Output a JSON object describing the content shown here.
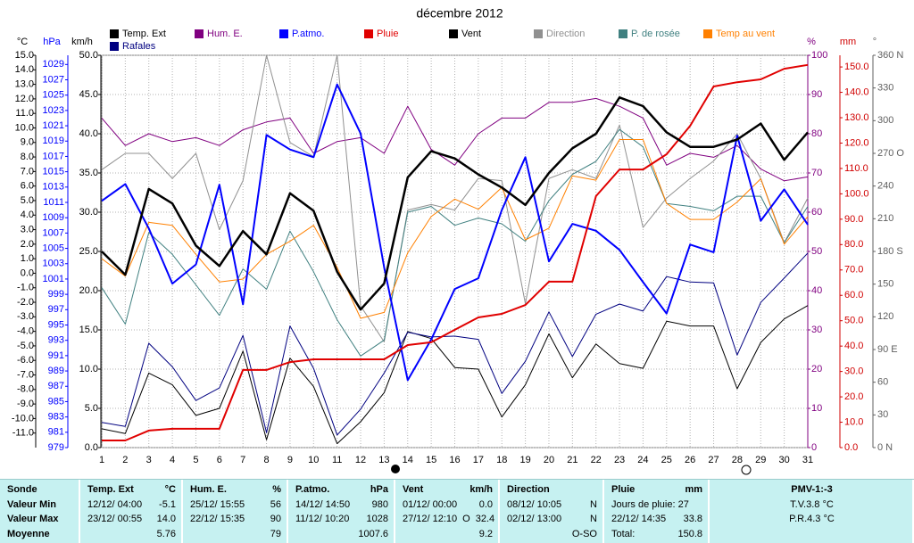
{
  "chart_data": {
    "type": "line",
    "title": "décembre 2012",
    "x": [
      1,
      2,
      3,
      4,
      5,
      6,
      7,
      8,
      9,
      10,
      11,
      12,
      13,
      14,
      15,
      16,
      17,
      18,
      19,
      20,
      21,
      22,
      23,
      24,
      25,
      26,
      27,
      28,
      29,
      30,
      31
    ],
    "xlim": [
      1,
      31
    ],
    "xticks": [
      1,
      2,
      3,
      4,
      5,
      6,
      7,
      8,
      9,
      10,
      11,
      12,
      13,
      14,
      15,
      16,
      17,
      18,
      19,
      20,
      21,
      22,
      23,
      24,
      25,
      26,
      27,
      28,
      29,
      30,
      31
    ],
    "grid": true,
    "axes": [
      {
        "label": "°C",
        "color": "#000000",
        "lim": [
          -12,
          15
        ],
        "ticks": [
          {
            "value": 15,
            "label": "15.0"
          },
          {
            "value": 14,
            "label": "14.0"
          },
          {
            "value": 13,
            "label": "13.0"
          },
          {
            "value": 12,
            "label": "12.0"
          },
          {
            "value": 11,
            "label": "11.0"
          },
          {
            "value": 10,
            "label": "10.0"
          },
          {
            "value": 9,
            "label": "9.0"
          },
          {
            "value": 8,
            "label": "8.0"
          },
          {
            "value": 7,
            "label": "7.0"
          },
          {
            "value": 6,
            "label": "6.0"
          },
          {
            "value": 5,
            "label": "5.0"
          },
          {
            "value": 4,
            "label": "4.0"
          },
          {
            "value": 3,
            "label": "3.0"
          },
          {
            "value": 2,
            "label": "2.0"
          },
          {
            "value": 1,
            "label": "1.0"
          },
          {
            "value": 0,
            "label": "0.0"
          },
          {
            "value": -1,
            "label": "-1.0"
          },
          {
            "value": -2,
            "label": "-2.0"
          },
          {
            "value": -3,
            "label": "-3.0"
          },
          {
            "value": -4,
            "label": "-4.0"
          },
          {
            "value": -5,
            "label": "-5.0"
          },
          {
            "value": -6,
            "label": "-6.0"
          },
          {
            "value": -7,
            "label": "-7.0"
          },
          {
            "value": -8,
            "label": "-8.0"
          },
          {
            "value": -9,
            "label": "-9.0"
          },
          {
            "value": -10,
            "label": "-10.0"
          },
          {
            "value": -11,
            "label": "-11.0"
          }
        ]
      },
      {
        "label": "hPa",
        "color": "#0000ff",
        "lim": [
          979,
          1030.2
        ],
        "ticks": [
          1029,
          1027,
          1025,
          1023,
          1021,
          1019,
          1017,
          1015,
          1013,
          1011,
          1009,
          1007,
          1005,
          1003,
          1001,
          999,
          997,
          995,
          993,
          991,
          989,
          987,
          985,
          983,
          981,
          979
        ]
      },
      {
        "label": "km/h",
        "color": "#000000",
        "lim": [
          0,
          50
        ],
        "grid": true,
        "ticks": [
          {
            "value": 50,
            "label": "50.0"
          },
          {
            "value": 45,
            "label": "45.0"
          },
          {
            "value": 40,
            "label": "40.0"
          },
          {
            "value": 35,
            "label": "35.0"
          },
          {
            "value": 30,
            "label": "30.0"
          },
          {
            "value": 25,
            "label": "25.0"
          },
          {
            "value": 20,
            "label": "20.0"
          },
          {
            "value": 15,
            "label": "15.0"
          },
          {
            "value": 10,
            "label": "10.0"
          },
          {
            "value": 5,
            "label": "5.0"
          },
          {
            "value": 0,
            "label": "0.0"
          }
        ]
      },
      {
        "label": "%",
        "color": "#800080",
        "lim": [
          0,
          100
        ],
        "ticks": [
          100,
          90,
          80,
          70,
          60,
          50,
          40,
          30,
          20,
          10,
          0
        ]
      },
      {
        "label": "mm",
        "color": "#d00000",
        "lim": [
          0,
          154.6
        ],
        "ticks": [
          {
            "value": 150,
            "label": "150.0"
          },
          {
            "value": 140,
            "label": "140.0"
          },
          {
            "value": 130,
            "label": "130.0"
          },
          {
            "value": 120,
            "label": "120.0"
          },
          {
            "value": 110,
            "label": "110.0"
          },
          {
            "value": 100,
            "label": "100.0"
          },
          {
            "value": 90,
            "label": "90.0"
          },
          {
            "value": 80,
            "label": "80.0"
          },
          {
            "value": 70,
            "label": "70.0"
          },
          {
            "value": 60,
            "label": "60.0"
          },
          {
            "value": 50,
            "label": "50.0"
          },
          {
            "value": 40,
            "label": "40.0"
          },
          {
            "value": 30,
            "label": "30.0"
          },
          {
            "value": 20,
            "label": "20.0"
          },
          {
            "value": 10,
            "label": "10.0"
          },
          {
            "value": 0,
            "label": "0.0"
          }
        ]
      },
      {
        "label": "°",
        "color": "#606060",
        "lim": [
          0,
          360
        ],
        "ticks": [
          {
            "value": 360,
            "label": "360 N"
          },
          330,
          300,
          {
            "value": 270,
            "label": "270 O"
          },
          240,
          210,
          {
            "value": 180,
            "label": "180 S"
          },
          150,
          120,
          {
            "value": 90,
            "label": "90 E"
          },
          60,
          30,
          {
            "value": 0,
            "label": "0 N"
          }
        ]
      }
    ],
    "series": [
      {
        "name": "Temp. Ext",
        "color": "#000000",
        "axis": 0,
        "line_width": 2.5,
        "values": [
          1.5,
          -0.1,
          5.8,
          4.8,
          1.9,
          0.5,
          2.9,
          1.3,
          5.5,
          4.3,
          0.1,
          -2.5,
          -0.7,
          6.6,
          8.4,
          7.9,
          6.8,
          5.9,
          4.7,
          6.9,
          8.6,
          9.6,
          12.1,
          11.5,
          9.7,
          8.7,
          8.7,
          9.2,
          10.3,
          7.8,
          9.7
        ]
      },
      {
        "name": "Hum. E.",
        "color": "#800080",
        "axis": 3,
        "line_width": 1,
        "values": [
          84,
          77,
          80,
          78,
          79,
          77,
          81,
          83,
          84,
          75,
          78,
          79,
          75,
          87,
          76,
          72,
          80,
          84,
          84,
          88,
          88,
          89,
          87,
          84,
          72,
          75,
          74,
          77,
          71,
          68,
          69
        ]
      },
      {
        "name": "P.atmo.",
        "color": "#0000ff",
        "axis": 1,
        "line_width": 2,
        "values": [
          1011.2,
          1013.4,
          1007.6,
          1000.4,
          1002.9,
          1013.3,
          997.7,
          1019.8,
          1017.9,
          1016.9,
          1026.4,
          1020.0,
          1002.5,
          987.8,
          993.1,
          999.7,
          1001.1,
          1010.0,
          1016.9,
          1003.3,
          1008.2,
          1007.3,
          1004.8,
          1000.6,
          996.5,
          1005.5,
          1004.5,
          1019.7,
          1008.6,
          1012.7,
          1008.1
        ]
      },
      {
        "name": "Pluie",
        "color": "#e00000",
        "axis": 4,
        "line_width": 2,
        "values": [
          2.8,
          2.8,
          6.7,
          7.4,
          7.4,
          7.4,
          30.6,
          30.6,
          33.7,
          34.8,
          34.8,
          34.8,
          34.8,
          40.4,
          41.5,
          46.4,
          51.3,
          52.7,
          56.2,
          65.4,
          65.4,
          99.1,
          109.6,
          109.6,
          115.6,
          126.8,
          142.3,
          144.0,
          145.1,
          149.3,
          150.8
        ]
      },
      {
        "name": "Vent",
        "color": "#000000",
        "axis": 2,
        "line_width": 1,
        "values": [
          2.4,
          1.8,
          9.5,
          8.0,
          4.1,
          5.0,
          12.3,
          1.0,
          11.4,
          7.8,
          0.5,
          3.3,
          7.0,
          14.8,
          13.9,
          10.2,
          10.0,
          3.9,
          8.0,
          14.5,
          8.9,
          13.2,
          10.7,
          10.1,
          16.1,
          15.5,
          15.5,
          7.5,
          13.4,
          16.4,
          18.1
        ]
      },
      {
        "name": "Direction",
        "color": "#909090",
        "axis": 5,
        "line_width": 1,
        "values": [
          255,
          270,
          270,
          247,
          270,
          200,
          245,
          360,
          280,
          267,
          360,
          130,
          97,
          218,
          223,
          218,
          247,
          245,
          132,
          247,
          255,
          247,
          296,
          202,
          229,
          247,
          263,
          288,
          247,
          188,
          229
        ]
      },
      {
        "name": "P. de rosée",
        "color": "#408080",
        "axis": 0,
        "line_width": 1,
        "values": [
          -1.0,
          -3.5,
          2.8,
          1.3,
          -0.8,
          -2.9,
          0.3,
          -1.1,
          2.9,
          0.1,
          -3.2,
          -5.7,
          -4.6,
          4.2,
          4.6,
          3.3,
          3.8,
          3.4,
          2.2,
          5.0,
          6.8,
          7.7,
          9.9,
          8.7,
          4.8,
          4.6,
          4.3,
          5.3,
          5.3,
          2.1,
          4.6
        ]
      },
      {
        "name": "Temp au vent",
        "color": "#ff8000",
        "axis": 0,
        "line_width": 1,
        "values": [
          1.0,
          -0.2,
          3.5,
          3.3,
          1.3,
          -0.6,
          -0.4,
          1.3,
          2.2,
          3.3,
          0.4,
          -3.1,
          -2.7,
          1.4,
          3.9,
          5.1,
          4.4,
          5.9,
          2.3,
          3.1,
          6.7,
          6.4,
          9.2,
          9.2,
          4.8,
          3.7,
          3.7,
          4.9,
          6.5,
          2.0,
          3.9
        ]
      },
      {
        "name": "Rafales",
        "color": "#000080",
        "axis": 2,
        "line_width": 1,
        "values": [
          3.2,
          2.7,
          13.3,
          10.3,
          6.0,
          7.6,
          14.3,
          1.9,
          15.5,
          10.1,
          1.6,
          4.9,
          9.5,
          14.7,
          14.1,
          14.2,
          13.8,
          6.9,
          11.0,
          17.3,
          11.6,
          17.0,
          18.3,
          17.4,
          21.8,
          21.1,
          21.0,
          11.8,
          18.5,
          21.6,
          24.8
        ]
      }
    ]
  },
  "stats": {
    "rows": [
      [
        [
          "Sonde"
        ],
        [
          "Temp. Ext",
          "°C"
        ],
        [
          "Hum. E.",
          "%"
        ],
        [
          "P.atmo.",
          "hPa"
        ],
        [
          "Vent",
          "km/h"
        ],
        [
          "Direction"
        ],
        [
          "Pluie",
          "mm"
        ],
        [
          "PMV-1:-3"
        ]
      ],
      [
        [
          "Valeur Min"
        ],
        [
          "12/12/ 04:00",
          "-5.1"
        ],
        [
          "25/12/ 15:55",
          "56"
        ],
        [
          "14/12/ 14:50",
          "980"
        ],
        [
          "01/12/ 00:00",
          "0.0"
        ],
        [
          "08/12/ 10:05",
          "N"
        ],
        [
          "Jours de pluie: 27"
        ],
        [
          "T.V.3.8 °C"
        ]
      ],
      [
        [
          "Valeur Max"
        ],
        [
          "23/12/ 00:55",
          "14.0"
        ],
        [
          "22/12/ 15:35",
          "90"
        ],
        [
          "11/12/ 10:20",
          "1028"
        ],
        [
          "27/12/ 12:10",
          "O",
          "32.4"
        ],
        [
          "02/12/ 13:00",
          "N"
        ],
        [
          "22/12/ 14:35",
          "33.8"
        ],
        [
          "P.R.4.3 °C"
        ]
      ],
      [
        [
          "Moyenne"
        ],
        [
          "5.76"
        ],
        [
          "79"
        ],
        [
          "1007.6"
        ],
        [
          "9.2"
        ],
        [
          "O-SO"
        ],
        [
          "Total:",
          "150.8"
        ],
        []
      ]
    ]
  }
}
